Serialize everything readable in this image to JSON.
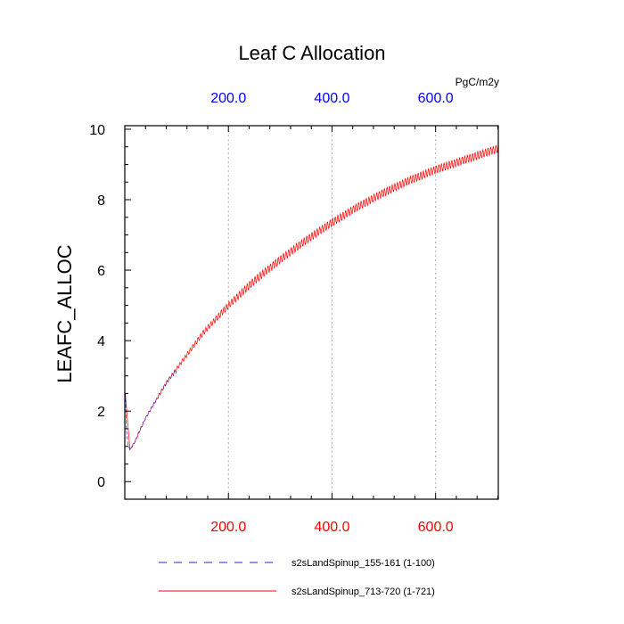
{
  "chart_data": {
    "type": "line",
    "title": "Leaf C Allocation",
    "ylabel": "LEAFC_ALLOC",
    "units": "PgC/m2y",
    "xlim": [
      0,
      721
    ],
    "ylim": [
      -0.5,
      10.1
    ],
    "x_ticks": [
      200,
      400,
      600
    ],
    "x_tick_labels": [
      "200.0",
      "400.0",
      "600.0"
    ],
    "x_tick_labels_top": [
      "200.0",
      "400.0",
      "600.0"
    ],
    "y_ticks": [
      0,
      2,
      4,
      6,
      8,
      10
    ],
    "y_tick_labels": [
      "0",
      "2",
      "4",
      "6",
      "8",
      "10"
    ],
    "grid": "vertical dotted at x ticks",
    "series": [
      {
        "name": "s2sLandSpinup_155-161 (1-100)",
        "color": "#3a22cc",
        "style": "dashed",
        "x": [
          1,
          3,
          6,
          10,
          15,
          20,
          30,
          40,
          50,
          60,
          70,
          80,
          90,
          100
        ],
        "y": [
          2.5,
          1.5,
          1.05,
          0.9,
          1.0,
          1.15,
          1.5,
          1.8,
          2.05,
          2.3,
          2.55,
          2.8,
          3.0,
          3.15
        ]
      },
      {
        "name": "s2sLandSpinup_713-720 (1-721)",
        "color": "#ff0000",
        "style": "solid",
        "x": [
          1,
          10,
          20,
          40,
          60,
          80,
          100,
          150,
          200,
          250,
          300,
          350,
          400,
          450,
          500,
          550,
          600,
          650,
          700,
          721
        ],
        "y": [
          2.5,
          0.9,
          1.15,
          1.8,
          2.3,
          2.8,
          3.2,
          4.2,
          5.0,
          5.7,
          6.3,
          6.85,
          7.35,
          7.8,
          8.2,
          8.55,
          8.85,
          9.1,
          9.35,
          9.45
        ]
      }
    ]
  }
}
